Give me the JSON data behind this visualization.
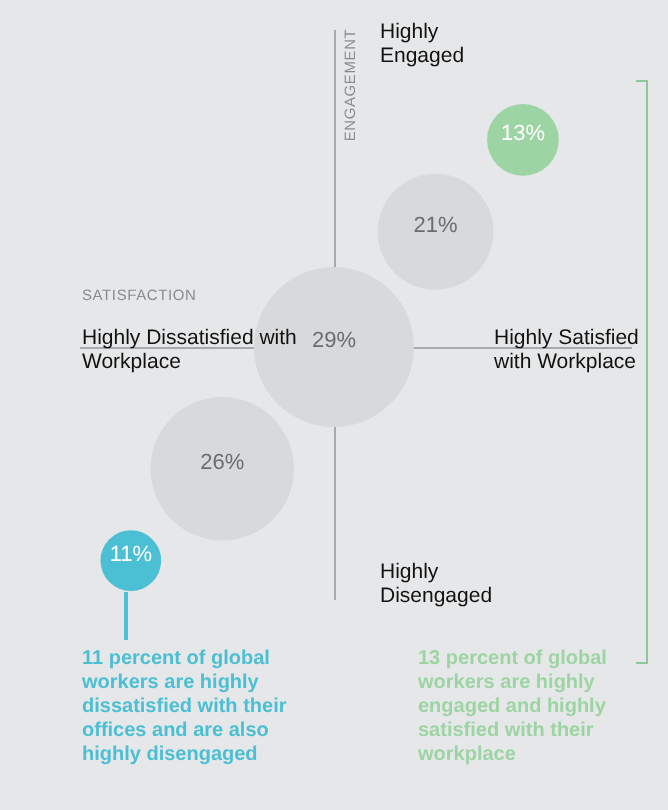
{
  "chart_data": {
    "type": "other",
    "xlabel": "SATISFACTION",
    "ylabel": "ENGAGEMENT",
    "categories": [
      null,
      null,
      null,
      null,
      null
    ],
    "series": [
      {
        "values": [
          13,
          21,
          29,
          26,
          11
        ],
        "colors": [
          "#9dd4a3",
          "#d8d9da",
          "#d8d9da",
          "#d8d9da",
          "#4bbfd3"
        ],
        "value_labels": [
          "13%",
          "21%",
          "29%",
          "26%",
          "11%"
        ]
      }
    ],
    "annotations": [
      "Highly Engaged",
      "Highly Dissatisfied with Workplace",
      "Highly Satisfied with Workplace",
      "Highly Disengaged",
      "11 percent of global workers are highly dissatisfied with their offices and are also highly disengaged",
      "13 percent of global workers are highly engaged and highly satisfied with their workplace"
    ],
    "legend": false
  }
}
